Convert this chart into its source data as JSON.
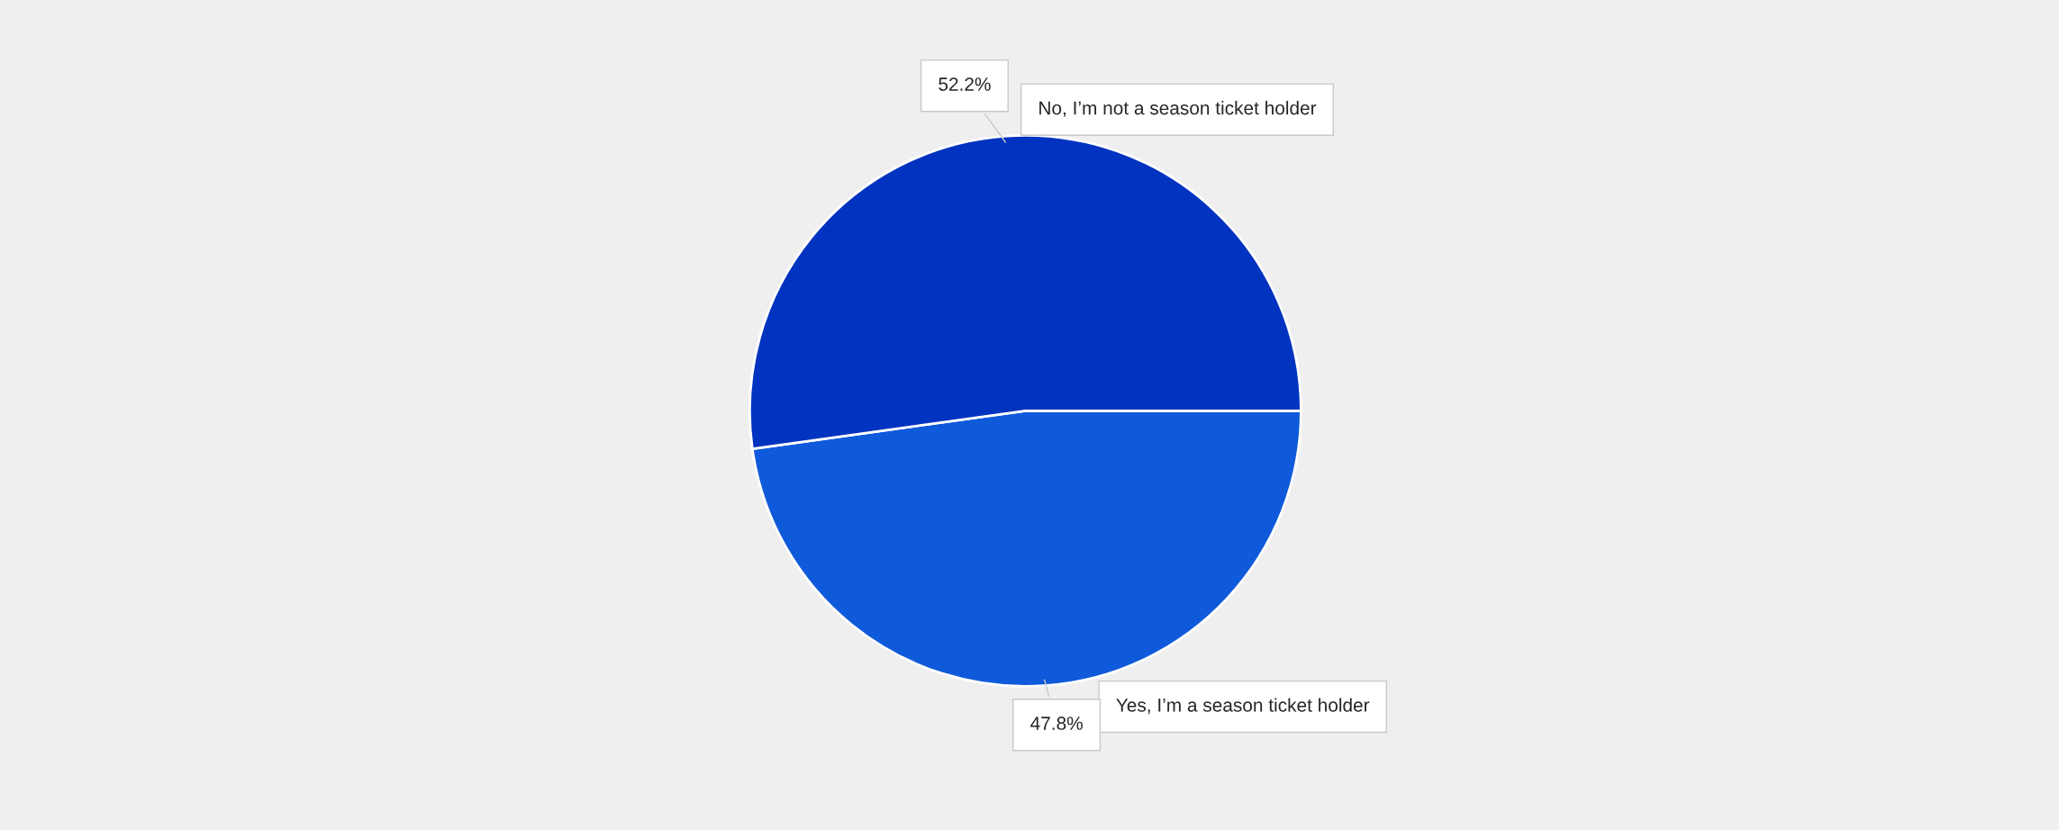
{
  "chart_data": {
    "type": "pie",
    "categories": [
      "Yes, I’m a season ticket holder",
      "No, I’m not a season ticket holder"
    ],
    "values": [
      47.8,
      52.2
    ],
    "colors": [
      "#0f5adb",
      "#0033c0"
    ],
    "value_labels": [
      "47.8%",
      "52.2%"
    ]
  }
}
